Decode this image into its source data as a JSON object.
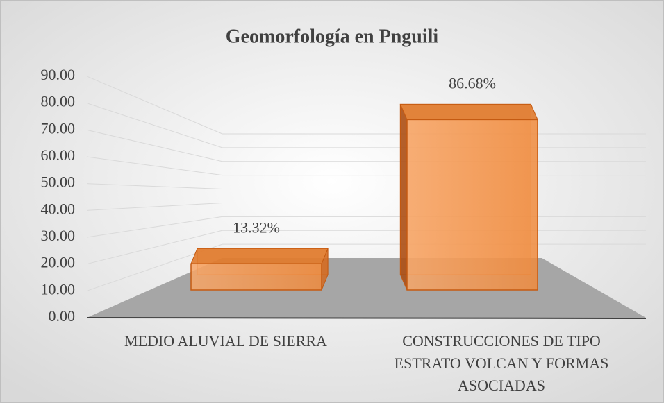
{
  "chart_data": {
    "type": "bar3d",
    "title": "Geomorfología en Pnguili",
    "categories": [
      "MEDIO ALUVIAL DE SIERRA",
      "CONSTRUCCIONES DE TIPO ESTRATO VOLCAN Y FORMAS ASOCIADAS"
    ],
    "values": [
      13.32,
      86.68
    ],
    "value_labels": [
      "13.32%",
      "86.68%"
    ],
    "color": "#f79646",
    "ylim": [
      0,
      90
    ],
    "yticks": [
      {
        "value": 0,
        "label": "0.00"
      },
      {
        "value": 10,
        "label": "10.00"
      },
      {
        "value": 20,
        "label": "20.00"
      },
      {
        "value": 30,
        "label": "30.00"
      },
      {
        "value": 40,
        "label": "40.00"
      },
      {
        "value": 50,
        "label": "50.00"
      },
      {
        "value": 60,
        "label": "60.00"
      },
      {
        "value": 70,
        "label": "70.00"
      },
      {
        "value": 80,
        "label": "80.00"
      },
      {
        "value": 90,
        "label": "90.00"
      }
    ],
    "grid": true
  }
}
